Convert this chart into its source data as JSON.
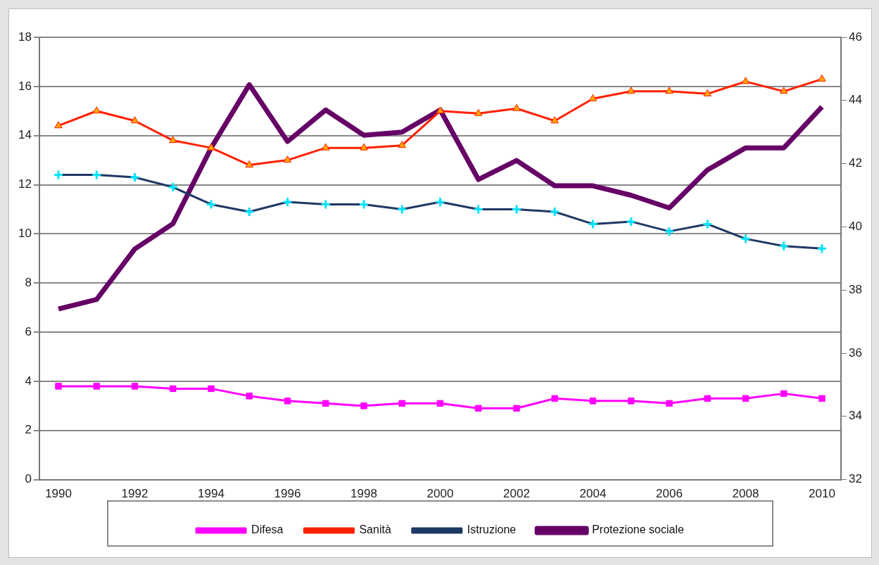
{
  "chart_data": {
    "type": "line",
    "categories": [
      "1990",
      null,
      "1992",
      null,
      "1994",
      null,
      "1996",
      null,
      "1998",
      null,
      "2000",
      null,
      "2002",
      null,
      "2004",
      null,
      "2006",
      null,
      "2008",
      null,
      "2010"
    ],
    "series": [
      {
        "name": "Difesa",
        "color": "#ff00ff",
        "marker": "square",
        "values": [
          3.8,
          3.8,
          3.8,
          3.7,
          3.7,
          3.4,
          3.2,
          3.1,
          3.0,
          3.1,
          3.1,
          2.9,
          2.9,
          3.3,
          3.2,
          3.2,
          3.1,
          3.3,
          3.3,
          3.5,
          3.3
        ]
      },
      {
        "name": "Sanità",
        "color": "#ff2000",
        "marker": "triangle",
        "values": [
          14.4,
          15.0,
          14.6,
          13.8,
          13.5,
          12.8,
          13.0,
          13.5,
          13.5,
          13.6,
          15.0,
          14.9,
          15.1,
          14.6,
          15.5,
          15.8,
          15.8,
          15.7,
          16.2,
          15.8,
          16.3
        ]
      },
      {
        "name": "Istruzione",
        "color": "#1f3864",
        "marker": "cross",
        "values": [
          12.4,
          12.4,
          12.3,
          11.9,
          11.2,
          10.9,
          11.3,
          11.2,
          11.2,
          11.0,
          11.3,
          11.0,
          11.0,
          10.9,
          10.4,
          10.5,
          10.1,
          10.4,
          9.8,
          9.5,
          9.4
        ]
      },
      {
        "name": "Protezione sociale",
        "color": "#660066",
        "axis": "y2",
        "values": [
          37.4,
          37.7,
          39.3,
          40.1,
          42.5,
          44.5,
          42.7,
          43.7,
          42.9,
          43.0,
          43.7,
          41.5,
          42.1,
          41.3,
          41.3,
          41.0,
          40.6,
          41.8,
          42.5,
          42.5,
          43.8
        ]
      }
    ],
    "ylim": [
      0,
      18
    ],
    "yticks": [
      0,
      2,
      4,
      6,
      8,
      10,
      12,
      14,
      16,
      18
    ],
    "y2lim": [
      32,
      46
    ],
    "y2ticks": [
      32,
      34,
      36,
      38,
      40,
      42,
      44,
      46
    ],
    "grid": "y",
    "legend": "bottom"
  }
}
